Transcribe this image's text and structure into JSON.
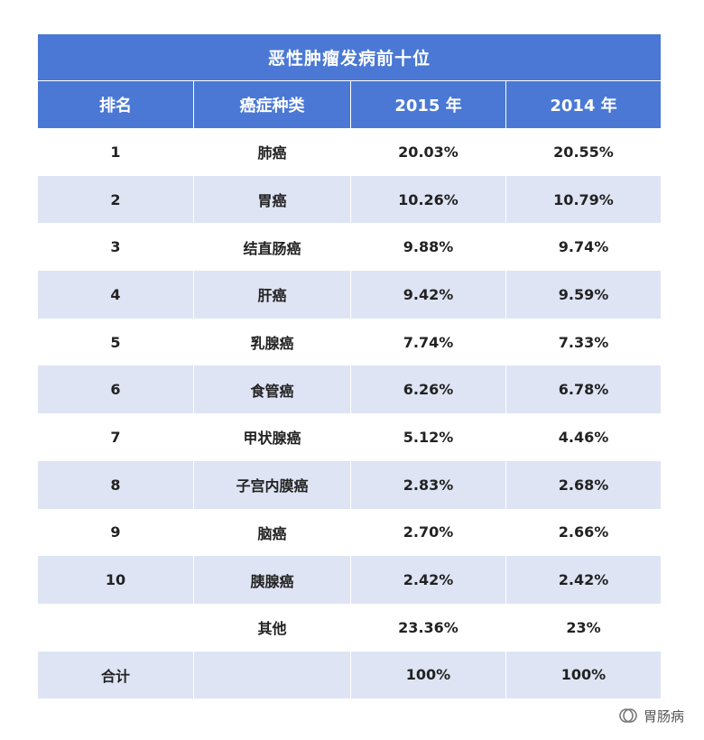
{
  "title": "恶性肿瘤发病前十位",
  "headers": [
    "排名",
    "癌症种类",
    "2015 年",
    "2014 年"
  ],
  "rows": [
    {
      "rank": "1",
      "type": "肺癌",
      "y2015": "20.03%",
      "y2014": "20.55%"
    },
    {
      "rank": "2",
      "type": "胃癌",
      "y2015": "10.26%",
      "y2014": "10.79%"
    },
    {
      "rank": "3",
      "type": "结直肠癌",
      "y2015": "9.88%",
      "y2014": "9.74%"
    },
    {
      "rank": "4",
      "type": "肝癌",
      "y2015": "9.42%",
      "y2014": "9.59%"
    },
    {
      "rank": "5",
      "type": "乳腺癌",
      "y2015": "7.74%",
      "y2014": "7.33%"
    },
    {
      "rank": "6",
      "type": "食管癌",
      "y2015": "6.26%",
      "y2014": "6.78%"
    },
    {
      "rank": "7",
      "type": "甲状腺癌",
      "y2015": "5.12%",
      "y2014": "4.46%"
    },
    {
      "rank": "8",
      "type": "子宫内膜癌",
      "y2015": "2.83%",
      "y2014": "2.68%"
    },
    {
      "rank": "9",
      "type": "脑癌",
      "y2015": "2.70%",
      "y2014": "2.66%"
    },
    {
      "rank": "10",
      "type": "胰腺癌",
      "y2015": "2.42%",
      "y2014": "2.42%"
    },
    {
      "rank": "",
      "type": "其他",
      "y2015": "23.36%",
      "y2014": "23%"
    },
    {
      "rank": "合计",
      "type": "",
      "y2015": "100%",
      "y2014": "100%"
    }
  ],
  "watermark": {
    "text": "胃肠病",
    "icon": "wechat-official-account-icon"
  },
  "colors": {
    "header": "#4a78d4",
    "shaded_row": "#dfe4f4",
    "plain_row": "#ffffff"
  }
}
